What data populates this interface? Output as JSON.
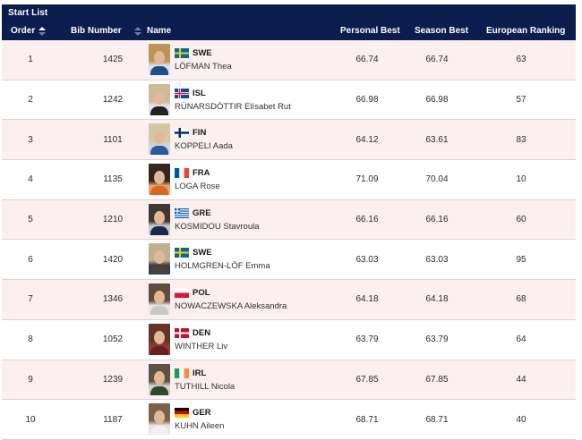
{
  "header": {
    "title": "Start List",
    "columns": {
      "order": "Order",
      "bib": "Bib Number",
      "name": "Name",
      "personal_best": "Personal Best",
      "season_best": "Season Best",
      "european_ranking": "European Ranking"
    }
  },
  "athletes": [
    {
      "order": "1",
      "bib": "1425",
      "country": "SWE",
      "name": "LÖFMAN Thea",
      "pb": "66.74",
      "sb": "66.74",
      "rank": "63"
    },
    {
      "order": "2",
      "bib": "1242",
      "country": "ISL",
      "name": "RÚNARSDÓTTIR Elísabet Rut",
      "pb": "66.98",
      "sb": "66.98",
      "rank": "57"
    },
    {
      "order": "3",
      "bib": "1101",
      "country": "FIN",
      "name": "KOPPELI Aada",
      "pb": "64.12",
      "sb": "63.61",
      "rank": "83"
    },
    {
      "order": "4",
      "bib": "1135",
      "country": "FRA",
      "name": "LOGA Rose",
      "pb": "71.09",
      "sb": "70.04",
      "rank": "10"
    },
    {
      "order": "5",
      "bib": "1210",
      "country": "GRE",
      "name": "KOSMIDOU Stavroula",
      "pb": "66.16",
      "sb": "66.16",
      "rank": "60"
    },
    {
      "order": "6",
      "bib": "1420",
      "country": "SWE",
      "name": "HOLMGREN-LÖF Emma",
      "pb": "63.03",
      "sb": "63.03",
      "rank": "95"
    },
    {
      "order": "7",
      "bib": "1346",
      "country": "POL",
      "name": "NOWACZEWSKA Aleksandra",
      "pb": "64.18",
      "sb": "64.18",
      "rank": "68"
    },
    {
      "order": "8",
      "bib": "1052",
      "country": "DEN",
      "name": "WINTHER Liv",
      "pb": "63.79",
      "sb": "63.79",
      "rank": "64"
    },
    {
      "order": "9",
      "bib": "1239",
      "country": "IRL",
      "name": "TUTHILL Nicola",
      "pb": "67.85",
      "sb": "67.85",
      "rank": "44"
    },
    {
      "order": "10",
      "bib": "1187",
      "country": "GER",
      "name": "KUHN Aileen",
      "pb": "68.71",
      "sb": "68.71",
      "rank": "40"
    }
  ],
  "colors": {
    "header_bg": "#0b1c4f",
    "row_alt_bg": "#fbefef"
  }
}
